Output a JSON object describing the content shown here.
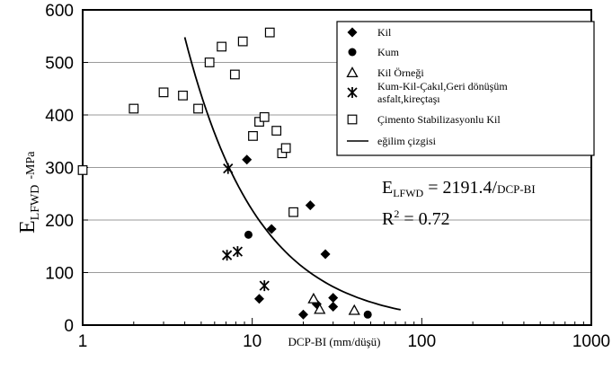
{
  "chart_data": {
    "type": "scatter",
    "xscale": "log",
    "xlim": [
      1,
      1000
    ],
    "ylim": [
      0,
      600
    ],
    "xticks": [
      "1",
      "10",
      "100",
      "1000"
    ],
    "yticks": [
      "0",
      "100",
      "200",
      "300",
      "400",
      "500",
      "600"
    ],
    "xlabel": "DCP-BI (mm/düşü)",
    "ylabel": {
      "main": "E",
      "sub": "LFWD",
      "unit": "-MPa"
    },
    "grid": "horizontal",
    "legend_position": "top-right",
    "series": [
      {
        "name": "Kil",
        "marker": "diamond",
        "points": [
          [
            9.3,
            315
          ],
          [
            11,
            50
          ],
          [
            13,
            183
          ],
          [
            22,
            228
          ],
          [
            27,
            135
          ],
          [
            30,
            52
          ],
          [
            30,
            35
          ],
          [
            24,
            40
          ],
          [
            20,
            20
          ]
        ]
      },
      {
        "name": "Kum",
        "marker": "circle",
        "points": [
          [
            9.5,
            172
          ],
          [
            48,
            20
          ]
        ]
      },
      {
        "name": "Kil Örneği",
        "marker": "triangle",
        "points": [
          [
            23,
            50
          ],
          [
            25,
            30
          ],
          [
            40,
            28
          ]
        ]
      },
      {
        "name": "Kum-Kil-Çakıl,Geri dönüşüm\nasfalt,kireçtaşı",
        "marker": "star",
        "points": [
          [
            7.2,
            298
          ],
          [
            7.1,
            133
          ],
          [
            8.2,
            140
          ],
          [
            11.8,
            75
          ]
        ]
      },
      {
        "name": "Çimento Stabilizasyonlu Kil",
        "marker": "square",
        "points": [
          [
            1,
            295
          ],
          [
            2,
            412
          ],
          [
            3,
            443
          ],
          [
            3.9,
            437
          ],
          [
            4.8,
            412
          ],
          [
            5.6,
            500
          ],
          [
            6.6,
            530
          ],
          [
            7.9,
            477
          ],
          [
            8.8,
            540
          ],
          [
            10.1,
            360
          ],
          [
            11,
            387
          ],
          [
            11.8,
            396
          ],
          [
            12.7,
            557
          ],
          [
            13.9,
            370
          ],
          [
            15,
            327
          ],
          [
            15.8,
            337
          ],
          [
            17.5,
            215
          ]
        ]
      },
      {
        "name": "eğilim çizgisi",
        "marker": "line",
        "fit": {
          "a": 2191.4,
          "x_from": 4,
          "x_to": 75
        }
      }
    ],
    "annotations": {
      "equation": {
        "lhs": "E",
        "lhs_sub": "LFWD",
        "rhs": " = 2191.4/",
        "rhs_small": "DCP-BI"
      },
      "r2": {
        "lhs": "R",
        "sup": "2",
        "rhs": " = 0.72"
      }
    }
  }
}
